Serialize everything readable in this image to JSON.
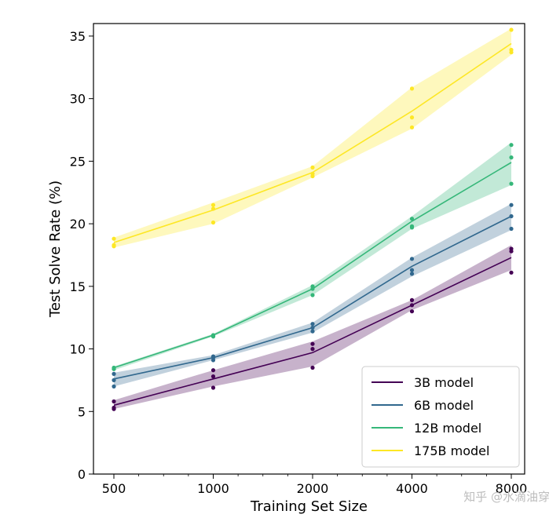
{
  "chart_data": {
    "type": "line",
    "xlabel": "Training Set Size",
    "ylabel": "Test Solve Rate (%)",
    "x_scale": "log",
    "x": [
      500,
      1000,
      2000,
      4000,
      8000
    ],
    "x_tick_labels": [
      "500",
      "1000",
      "2000",
      "4000",
      "8000"
    ],
    "ylim": [
      0,
      36
    ],
    "y_ticks": [
      0,
      5,
      10,
      15,
      20,
      25,
      30,
      35
    ],
    "grid": false,
    "legend_position": "bottom-right",
    "series": [
      {
        "name": "3B model",
        "color": "#440154",
        "values": [
          5.5,
          7.6,
          9.7,
          13.5,
          17.3
        ],
        "lower": [
          5.2,
          7.0,
          8.6,
          13.1,
          16.3
        ],
        "upper": [
          5.9,
          8.3,
          10.6,
          13.9,
          18.3
        ],
        "points": [
          [
            5.8,
            5.3,
            5.2
          ],
          [
            8.3,
            7.8,
            6.9
          ],
          [
            10.4,
            10.0,
            8.5
          ],
          [
            13.9,
            13.5,
            13.0
          ],
          [
            18.0,
            17.8,
            16.1
          ]
        ]
      },
      {
        "name": "6B model",
        "color": "#31688e",
        "values": [
          7.6,
          9.3,
          11.7,
          16.6,
          20.6
        ],
        "lower": [
          7.0,
          9.1,
          11.3,
          15.8,
          19.5
        ],
        "upper": [
          8.1,
          9.5,
          12.1,
          17.3,
          21.6
        ],
        "points": [
          [
            8.0,
            7.5,
            7.0
          ],
          [
            9.4,
            9.3,
            9.1
          ],
          [
            12.0,
            11.7,
            11.4
          ],
          [
            17.2,
            16.3,
            16.0
          ],
          [
            21.5,
            20.6,
            19.6
          ]
        ]
      },
      {
        "name": "12B model",
        "color": "#35b779",
        "values": [
          8.5,
          11.1,
          14.8,
          20.2,
          24.9
        ],
        "lower": [
          8.3,
          11.0,
          14.3,
          19.6,
          23.1
        ],
        "upper": [
          8.6,
          11.2,
          15.1,
          20.6,
          26.5
        ],
        "points": [
          [
            8.5,
            8.4,
            8.4
          ],
          [
            11.1,
            11.0,
            11.0
          ],
          [
            15.0,
            14.8,
            14.3
          ],
          [
            20.4,
            19.8,
            19.7
          ],
          [
            26.3,
            25.3,
            23.2
          ]
        ]
      },
      {
        "name": "175B model",
        "color": "#fde725",
        "values": [
          18.5,
          21.1,
          24.1,
          29.0,
          34.4
        ],
        "lower": [
          18.1,
          20.0,
          23.7,
          27.6,
          33.5
        ],
        "upper": [
          18.9,
          21.7,
          24.6,
          30.9,
          35.6
        ],
        "points": [
          [
            18.8,
            18.3,
            18.2
          ],
          [
            21.5,
            21.2,
            20.1
          ],
          [
            24.5,
            24.0,
            23.8
          ],
          [
            30.8,
            28.5,
            27.7
          ],
          [
            35.5,
            33.9,
            33.7
          ]
        ]
      }
    ]
  },
  "watermark": "知乎 @水滴油穿"
}
